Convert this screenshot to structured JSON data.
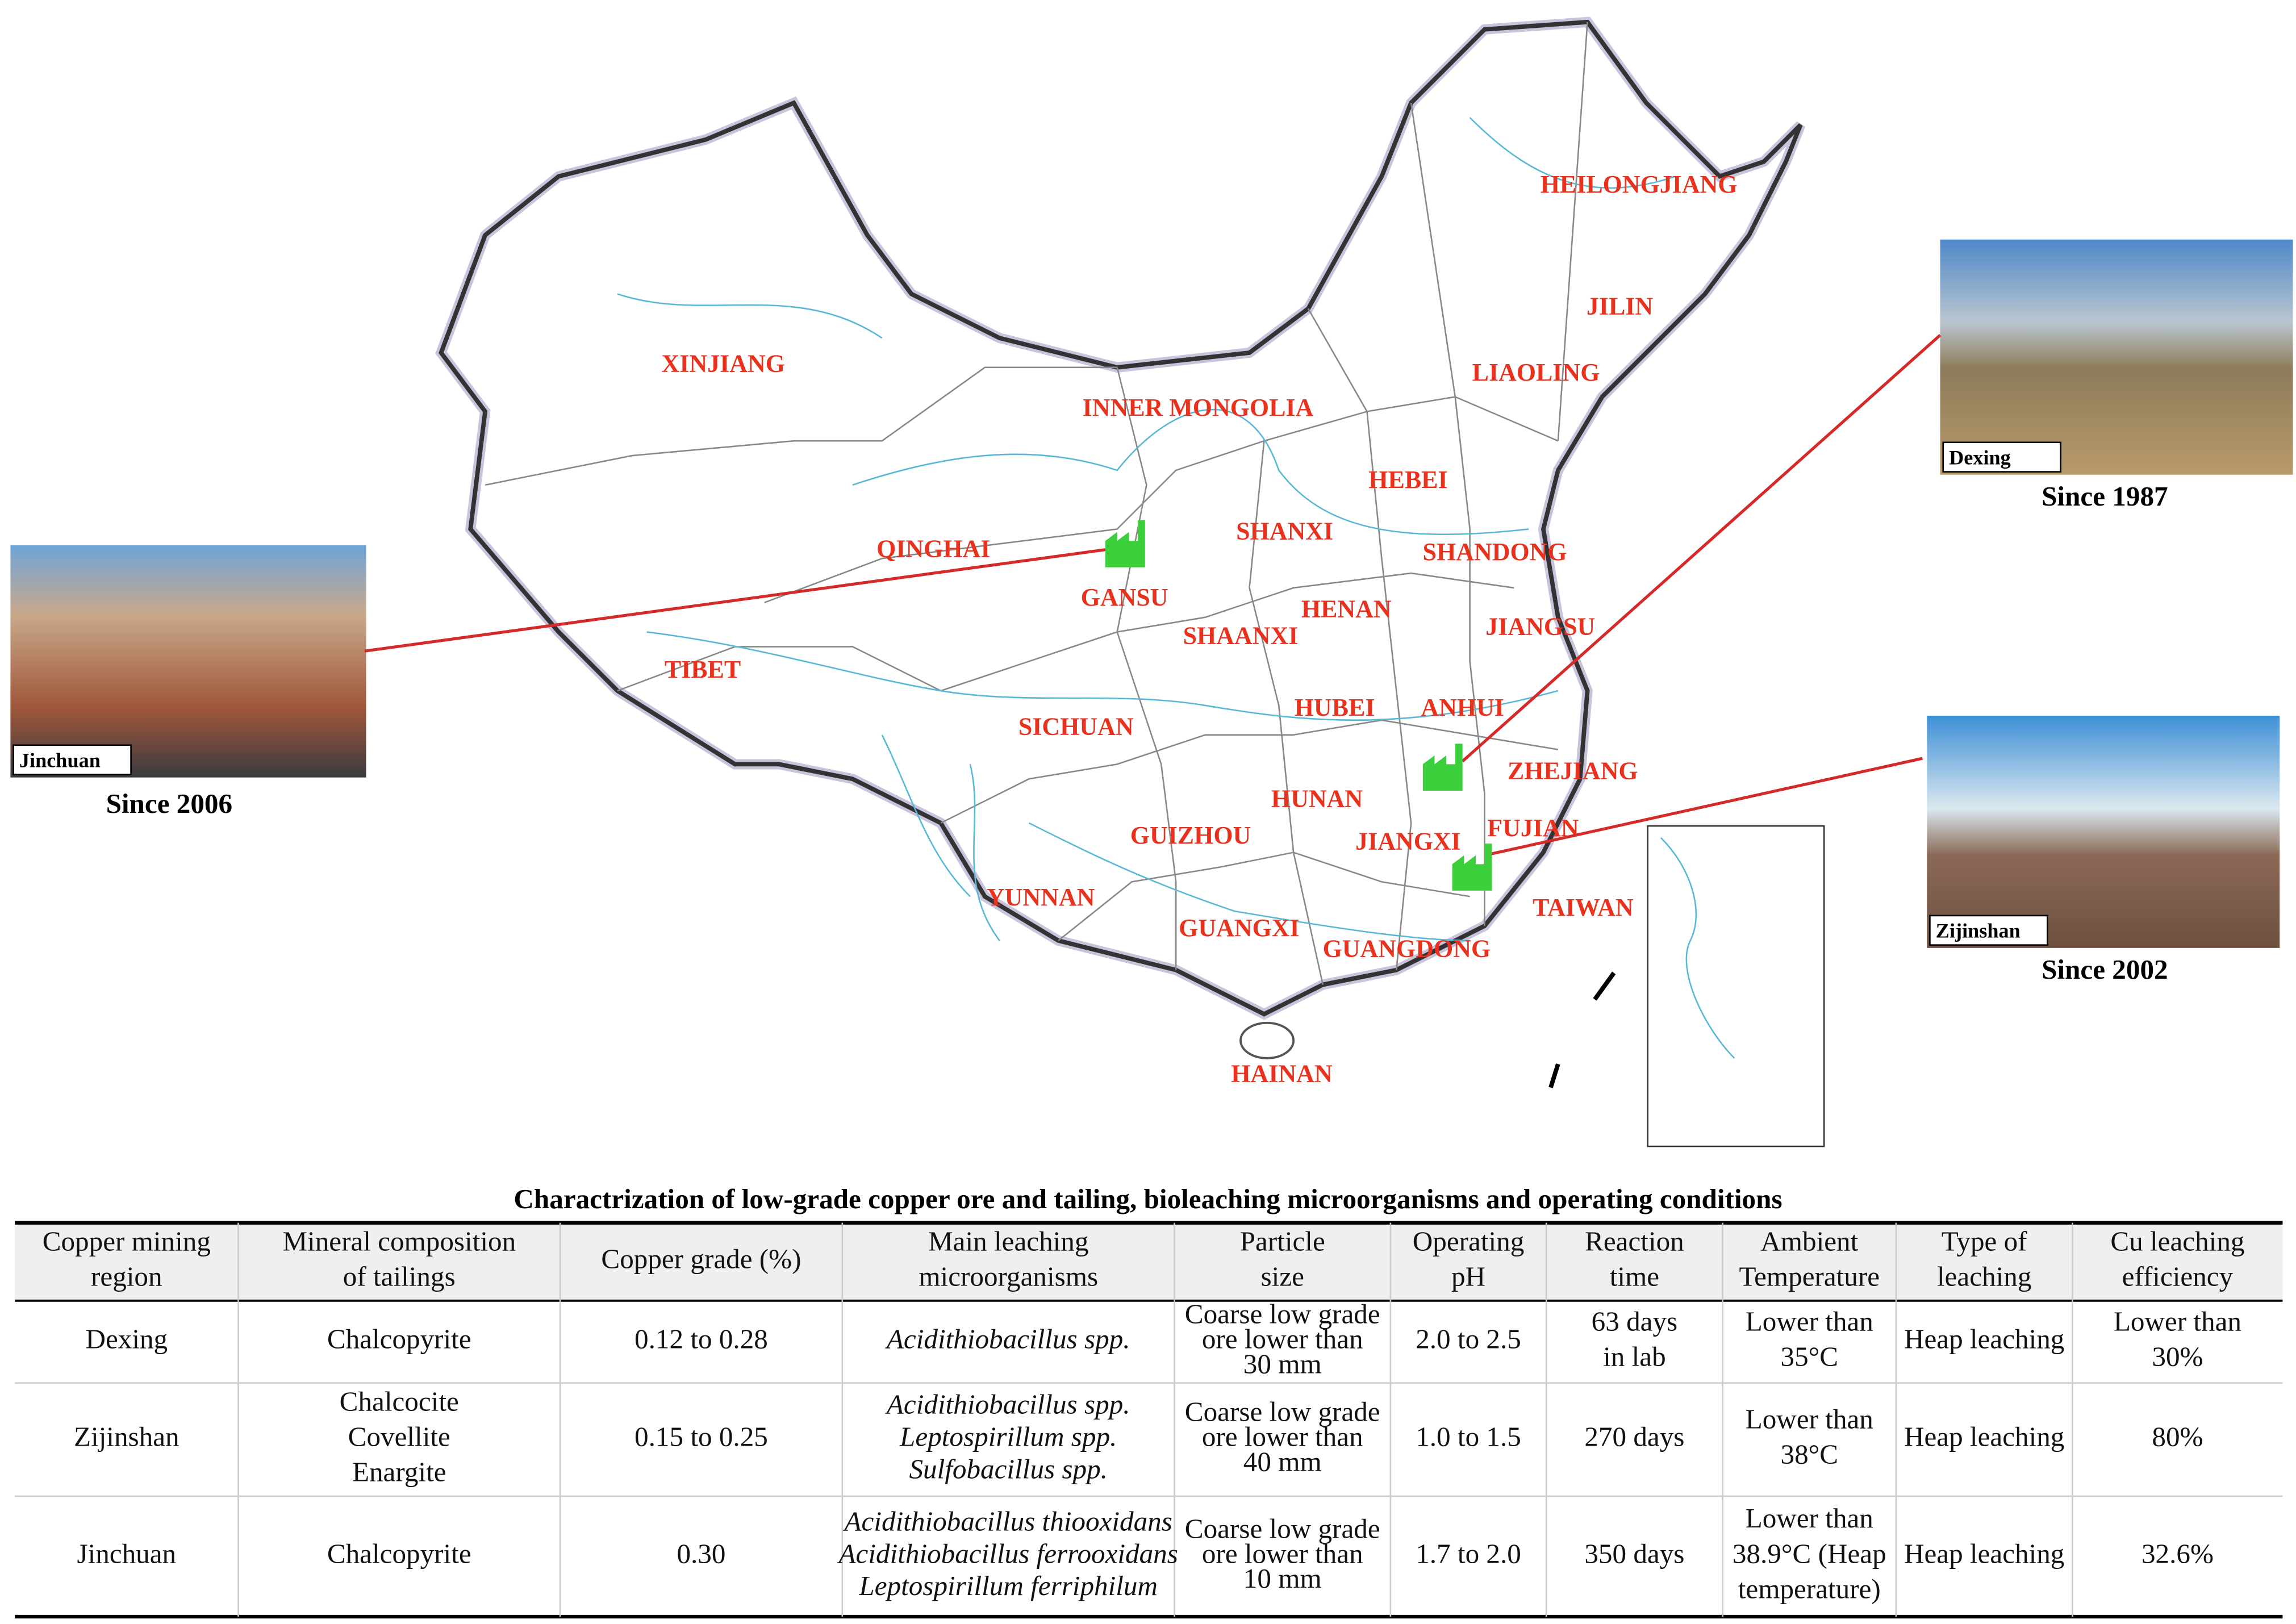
{
  "map": {
    "provinces": [
      "HEILONGJIANG",
      "JILIN",
      "LIAOLING",
      "XINJIANG",
      "INNER MONGOLIA",
      "HEBEI",
      "SHANXI",
      "SHANDONG",
      "QINGHAI",
      "GANSU",
      "HENAN",
      "SHAANXI",
      "JIANGSU",
      "TIBET",
      "SICHUAN",
      "HUBEI",
      "ANHUI",
      "ZHEJIANG",
      "HUNAN",
      "JIANGXI",
      "FUJIAN",
      "GUIZHOU",
      "YUNNAN",
      "TAIWAN",
      "GUANGXI",
      "GUANGDONG",
      "HAINAN"
    ],
    "sites": [
      {
        "name": "Jinchuan",
        "since": "Since 2006"
      },
      {
        "name": "Dexing",
        "since": "Since 1987"
      },
      {
        "name": "Zijinshan",
        "since": "Since 2002"
      }
    ]
  },
  "table": {
    "title": "Charactrization of low-grade copper ore and tailing, bioleaching microorganisms and operating conditions",
    "headers": [
      [
        "Copper mining",
        "region"
      ],
      [
        "Mineral composition",
        "of tailings"
      ],
      [
        "Copper grade (%)"
      ],
      [
        "Main leaching",
        "microorganisms"
      ],
      [
        "Particle",
        "size"
      ],
      [
        "Operating",
        "pH"
      ],
      [
        "Reaction",
        "time"
      ],
      [
        "Ambient",
        "Temperature"
      ],
      [
        "Type of",
        "leaching"
      ],
      [
        "Cu leaching",
        "efficiency"
      ]
    ],
    "rows": [
      [
        [
          "Dexing"
        ],
        [
          "Chalcopyrite"
        ],
        [
          "0.12 to 0.28"
        ],
        [
          "Acidithiobacillus spp."
        ],
        [
          "Coarse low grade",
          "ore lower than",
          "30 mm"
        ],
        [
          "2.0 to 2.5"
        ],
        [
          "63 days",
          "in lab"
        ],
        [
          "Lower than",
          "35°C"
        ],
        [
          "Heap leaching"
        ],
        [
          "Lower than",
          "30%"
        ]
      ],
      [
        [
          "Zijinshan"
        ],
        [
          "Chalcocite",
          "Covellite",
          "Enargite"
        ],
        [
          "0.15 to 0.25"
        ],
        [
          "Acidithiobacillus spp.",
          "Leptospirillum spp.",
          "Sulfobacillus spp."
        ],
        [
          "Coarse low grade",
          "ore lower than",
          "40 mm"
        ],
        [
          "1.0 to 1.5"
        ],
        [
          "270 days"
        ],
        [
          "Lower than",
          "38°C"
        ],
        [
          "Heap leaching"
        ],
        [
          "80%"
        ]
      ],
      [
        [
          "Jinchuan"
        ],
        [
          "Chalcopyrite"
        ],
        [
          "0.30"
        ],
        [
          "Acidithiobacillus thiooxidans",
          "Acidithiobacillus ferrooxidans",
          "Leptospirillum ferriphilum"
        ],
        [
          "Coarse low grade",
          "ore lower than",
          "10 mm"
        ],
        [
          "1.7 to 2.0"
        ],
        [
          "350 days"
        ],
        [
          "Lower than",
          "38.9°C (Heap",
          "temperature)"
        ],
        [
          "Heap leaching"
        ],
        [
          "32.6%"
        ]
      ]
    ]
  }
}
